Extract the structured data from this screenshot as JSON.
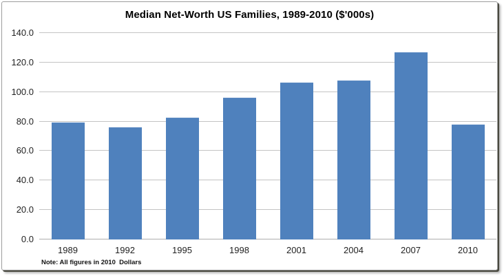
{
  "chart_data": {
    "type": "bar",
    "title": "Median Net-Worth US Families, 1989-2010 ($'000s)",
    "note": "Note: All figures in 2010  Dollars",
    "categories": [
      "1989",
      "1992",
      "1995",
      "1998",
      "2001",
      "2004",
      "2007",
      "2010"
    ],
    "values": [
      79.1,
      75.4,
      81.9,
      95.6,
      106.1,
      107.2,
      126.4,
      77.3
    ],
    "xlabel": "",
    "ylabel": "",
    "ylim": [
      0,
      140
    ],
    "ytick_step": 20,
    "ytick_labels": [
      "0.0",
      "20.0",
      "40.0",
      "60.0",
      "80.0",
      "100.0",
      "120.0",
      "140.0"
    ],
    "grid": true,
    "legend": false,
    "bar_color": "#4f81bd",
    "gridline_color": "#c3c3c3",
    "axis_text_color": "#1f1f1f"
  }
}
